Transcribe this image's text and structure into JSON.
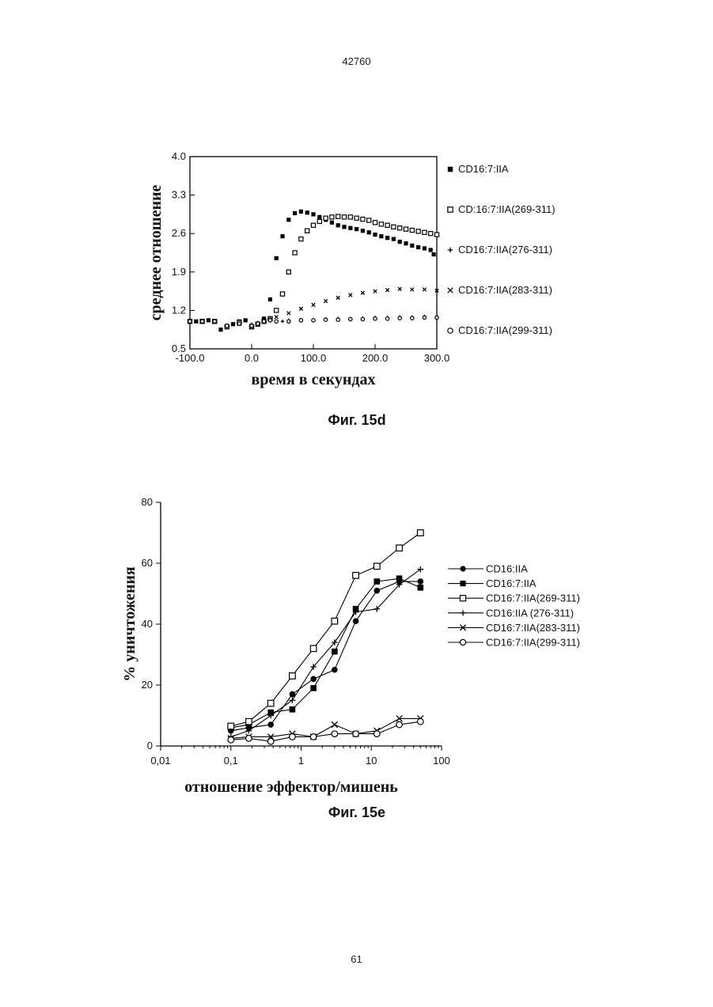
{
  "page": {
    "header": "42760",
    "footer": "61"
  },
  "chart_data": [
    {
      "type": "scatter",
      "caption": "Фиг. 15d",
      "xlabel": "время в секундах",
      "ylabel": "среднее отношение",
      "xlim": [
        -100,
        300
      ],
      "ylim": [
        0.5,
        4.0
      ],
      "xticks": [
        "-100.0",
        "0.0",
        "100.0",
        "200.0",
        "300.0"
      ],
      "yticks": [
        "0.5",
        "1.2",
        "1.9",
        "2.6",
        "3.3",
        "4.0"
      ],
      "grid": false,
      "legend_position": "right",
      "series": [
        {
          "name": "CD16:7:IIA",
          "marker": "filled-square",
          "x": [
            -100,
            -90,
            -80,
            -70,
            -60,
            -50,
            -40,
            -30,
            -20,
            -10,
            0,
            10,
            20,
            30,
            40,
            50,
            60,
            70,
            80,
            90,
            100,
            110,
            120,
            130,
            140,
            150,
            160,
            170,
            180,
            190,
            200,
            210,
            220,
            230,
            240,
            250,
            260,
            270,
            280,
            290,
            295
          ],
          "y": [
            1.0,
            1.0,
            1.01,
            1.02,
            1.0,
            0.85,
            0.9,
            0.95,
            1.0,
            1.02,
            0.9,
            0.95,
            1.05,
            1.4,
            2.15,
            2.55,
            2.85,
            2.97,
            3.0,
            2.98,
            2.95,
            2.9,
            2.85,
            2.8,
            2.75,
            2.72,
            2.7,
            2.68,
            2.65,
            2.62,
            2.58,
            2.55,
            2.52,
            2.5,
            2.45,
            2.42,
            2.38,
            2.35,
            2.33,
            2.3,
            2.22
          ]
        },
        {
          "name": "CD:16:7:IIA(269-311)",
          "marker": "open-square",
          "x": [
            -100,
            -80,
            -60,
            -40,
            -20,
            0,
            10,
            20,
            30,
            40,
            50,
            60,
            70,
            80,
            90,
            100,
            110,
            120,
            130,
            140,
            150,
            160,
            170,
            180,
            190,
            200,
            210,
            220,
            230,
            240,
            250,
            260,
            270,
            280,
            290,
            300
          ],
          "y": [
            1.0,
            1.0,
            1.0,
            0.9,
            0.98,
            0.9,
            0.95,
            1.0,
            1.05,
            1.2,
            1.5,
            1.9,
            2.25,
            2.5,
            2.65,
            2.75,
            2.82,
            2.88,
            2.9,
            2.91,
            2.9,
            2.9,
            2.88,
            2.86,
            2.84,
            2.8,
            2.77,
            2.75,
            2.72,
            2.7,
            2.68,
            2.66,
            2.64,
            2.62,
            2.6,
            2.58
          ]
        },
        {
          "name": "CD16:7:IIA(276-311)",
          "marker": "plus",
          "x": [
            -100,
            -80,
            -60,
            -40,
            -20,
            0,
            10,
            20,
            30,
            40,
            50,
            60,
            80,
            100,
            120,
            140,
            160,
            180,
            200,
            220,
            240,
            260,
            280,
            300
          ],
          "y": [
            1.0,
            1.0,
            1.0,
            0.9,
            0.95,
            0.95,
            0.98,
            1.0,
            1.05,
            1.0,
            1.0,
            1.02,
            1.03,
            1.03,
            1.04,
            1.05,
            1.05,
            1.06,
            1.07,
            1.07,
            1.08,
            1.08,
            1.09,
            1.09
          ]
        },
        {
          "name": "CD16:7:IIA(283-311)",
          "marker": "x",
          "x": [
            -100,
            -80,
            -60,
            -40,
            -20,
            0,
            10,
            20,
            30,
            40,
            60,
            80,
            100,
            120,
            140,
            160,
            180,
            200,
            220,
            240,
            260,
            280,
            300
          ],
          "y": [
            1.0,
            1.0,
            1.0,
            0.92,
            0.95,
            0.9,
            0.95,
            1.0,
            1.03,
            1.08,
            1.15,
            1.23,
            1.3,
            1.37,
            1.43,
            1.48,
            1.52,
            1.55,
            1.57,
            1.59,
            1.58,
            1.58,
            1.56
          ]
        },
        {
          "name": "CD16:7:IIA(299-311)",
          "marker": "open-circle",
          "x": [
            -100,
            -80,
            -60,
            -40,
            -20,
            0,
            10,
            20,
            30,
            40,
            60,
            80,
            100,
            120,
            140,
            160,
            180,
            200,
            220,
            240,
            260,
            280,
            300
          ],
          "y": [
            1.0,
            1.0,
            1.0,
            0.92,
            0.96,
            0.92,
            0.96,
            1.0,
            1.02,
            1.0,
            1.0,
            1.02,
            1.02,
            1.03,
            1.03,
            1.04,
            1.04,
            1.05,
            1.05,
            1.06,
            1.06,
            1.07,
            1.07
          ]
        }
      ]
    },
    {
      "type": "line",
      "caption": "Фиг. 15e",
      "xlabel": "отношение эффектор/мишень",
      "ylabel": "% уничтожения",
      "xscale": "log",
      "xlim": [
        0.01,
        100
      ],
      "ylim": [
        0,
        80
      ],
      "xticks": [
        "0,01",
        "0,1",
        "1",
        "10",
        "100"
      ],
      "yticks": [
        "0",
        "20",
        "40",
        "60",
        "80"
      ],
      "grid": false,
      "legend_position": "right",
      "series": [
        {
          "name": "CD16:IIA",
          "marker": "filled-circle",
          "x": [
            0.1,
            0.18,
            0.37,
            0.75,
            1.5,
            3,
            6,
            12,
            25,
            50
          ],
          "y": [
            5,
            6,
            7,
            17,
            22,
            25,
            41,
            51,
            54,
            54
          ]
        },
        {
          "name": "CD16:7:IIA",
          "marker": "filled-square",
          "x": [
            0.1,
            0.18,
            0.37,
            0.75,
            1.5,
            3,
            6,
            12,
            25,
            50
          ],
          "y": [
            6,
            7,
            11,
            12,
            19,
            31,
            45,
            54,
            55,
            52
          ]
        },
        {
          "name": "CD16:7:IIA(269-311)",
          "marker": "open-square",
          "x": [
            0.1,
            0.18,
            0.37,
            0.75,
            1.5,
            3,
            6,
            12,
            25,
            50
          ],
          "y": [
            6.5,
            8,
            14,
            23,
            32,
            41,
            56,
            59,
            65,
            70
          ]
        },
        {
          "name": "CD16:IIA (276-311)",
          "marker": "plus",
          "x": [
            0.1,
            0.18,
            0.37,
            0.75,
            1.5,
            3,
            6,
            12,
            25,
            50
          ],
          "y": [
            3,
            5,
            10,
            15,
            26,
            34,
            44,
            45,
            53,
            58
          ]
        },
        {
          "name": "CD16:7:IIA(283-311)",
          "marker": "x",
          "x": [
            0.1,
            0.18,
            0.37,
            0.75,
            1.5,
            3,
            6,
            12,
            25,
            50
          ],
          "y": [
            2.5,
            3,
            3,
            4,
            3,
            7,
            4,
            5,
            9,
            9
          ]
        },
        {
          "name": "CD16:7:IIA(299-311)",
          "marker": "open-circle",
          "x": [
            0.1,
            0.18,
            0.37,
            0.75,
            1.5,
            3,
            6,
            12,
            25,
            50
          ],
          "y": [
            2,
            2.5,
            1.5,
            3,
            3,
            4,
            4,
            4,
            7,
            8
          ]
        }
      ]
    }
  ]
}
